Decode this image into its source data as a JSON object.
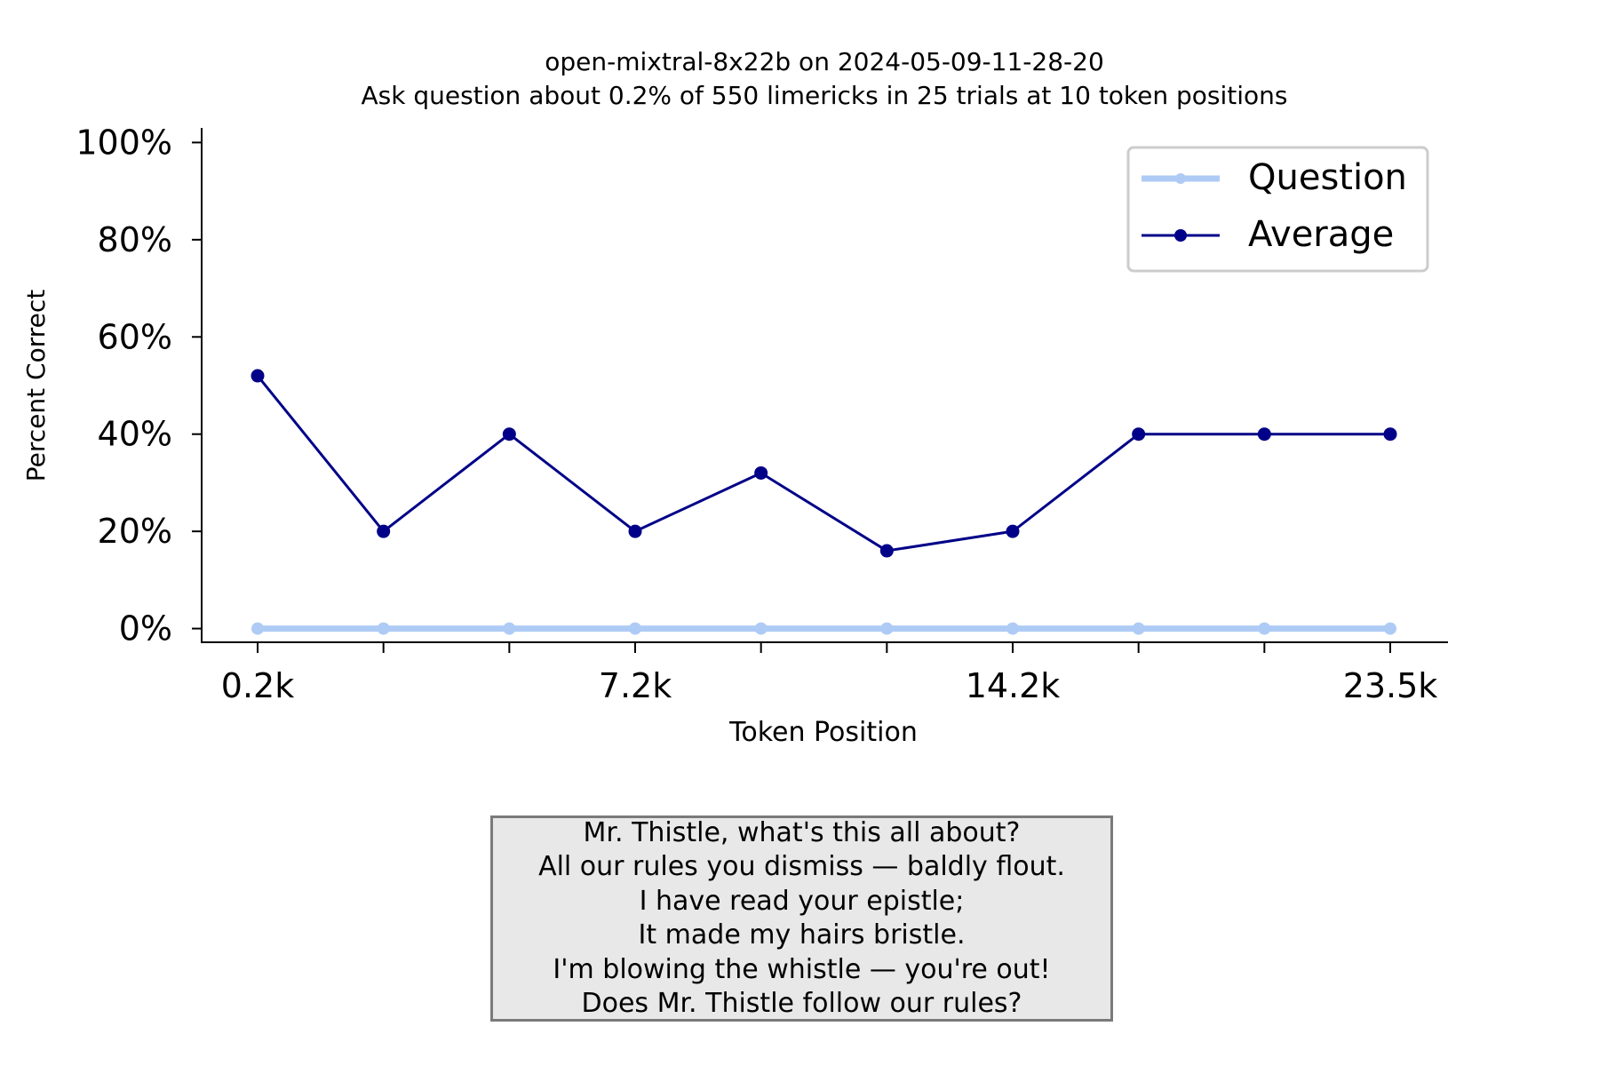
{
  "chart_data": {
    "type": "line",
    "title": "open-mixtral-8x22b on 2024-05-09-11-28-20",
    "subtitle": "Ask question about 0.2% of 550 limericks in 25 trials at 10 token positions",
    "xlabel": "Token Position",
    "ylabel": "Percent Correct",
    "x_tick_labels": [
      "0.2k",
      "",
      "",
      "7.2k",
      "",
      "",
      "14.2k",
      "",
      "",
      "23.5k"
    ],
    "y_ticks": [
      0,
      20,
      40,
      60,
      80,
      100
    ],
    "y_tick_labels": [
      "0%",
      "20%",
      "40%",
      "60%",
      "80%",
      "100%"
    ],
    "ylim": [
      -3,
      103
    ],
    "grid": false,
    "legend_position": "top-right",
    "series": [
      {
        "name": "Question",
        "color": "#aecbf5",
        "values": [
          0,
          0,
          0,
          0,
          0,
          0,
          0,
          0,
          0,
          0
        ]
      },
      {
        "name": "Average",
        "color": "#000088",
        "values": [
          52,
          20,
          40,
          20,
          32,
          16,
          20,
          40,
          40,
          40
        ]
      }
    ]
  },
  "limerick": {
    "lines": [
      "Mr. Thistle, what's this all about?",
      "All our rules you dismiss — baldly flout.",
      "I have read your epistle;",
      "It made my hairs bristle.",
      "I'm blowing the whistle — you're out!",
      "Does Mr. Thistle follow our rules?"
    ]
  }
}
